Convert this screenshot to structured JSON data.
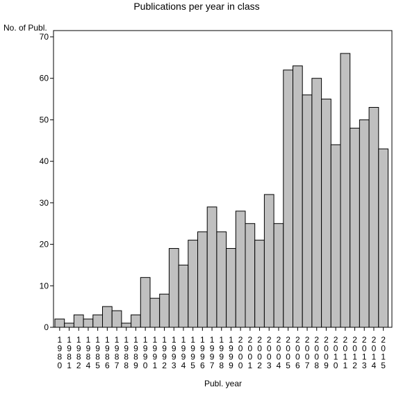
{
  "chart_data": {
    "type": "bar",
    "title": "Publications per year in class",
    "ylabel": "No. of Publ.",
    "xlabel": "Publ. year",
    "ylim": [
      0,
      70
    ],
    "yticks": [
      0,
      10,
      20,
      30,
      40,
      50,
      60,
      70
    ],
    "grid": false,
    "legend": "none",
    "bar_color": "#c0c0c0",
    "categories": [
      "1980",
      "1981",
      "1982",
      "1984",
      "1985",
      "1986",
      "1987",
      "1988",
      "1989",
      "1990",
      "1991",
      "1992",
      "1993",
      "1994",
      "1995",
      "1996",
      "1997",
      "1998",
      "1999",
      "2000",
      "2001",
      "2002",
      "2003",
      "2004",
      "2005",
      "2006",
      "2007",
      "2008",
      "2009",
      "2010",
      "2011",
      "2012",
      "2013",
      "2014",
      "2015"
    ],
    "values": [
      2,
      1,
      3,
      2,
      3,
      5,
      4,
      1,
      3,
      12,
      7,
      8,
      19,
      15,
      21,
      23,
      29,
      23,
      19,
      28,
      25,
      21,
      32,
      25,
      62,
      63,
      56,
      60,
      55,
      44,
      66,
      48,
      50,
      53,
      43
    ]
  }
}
